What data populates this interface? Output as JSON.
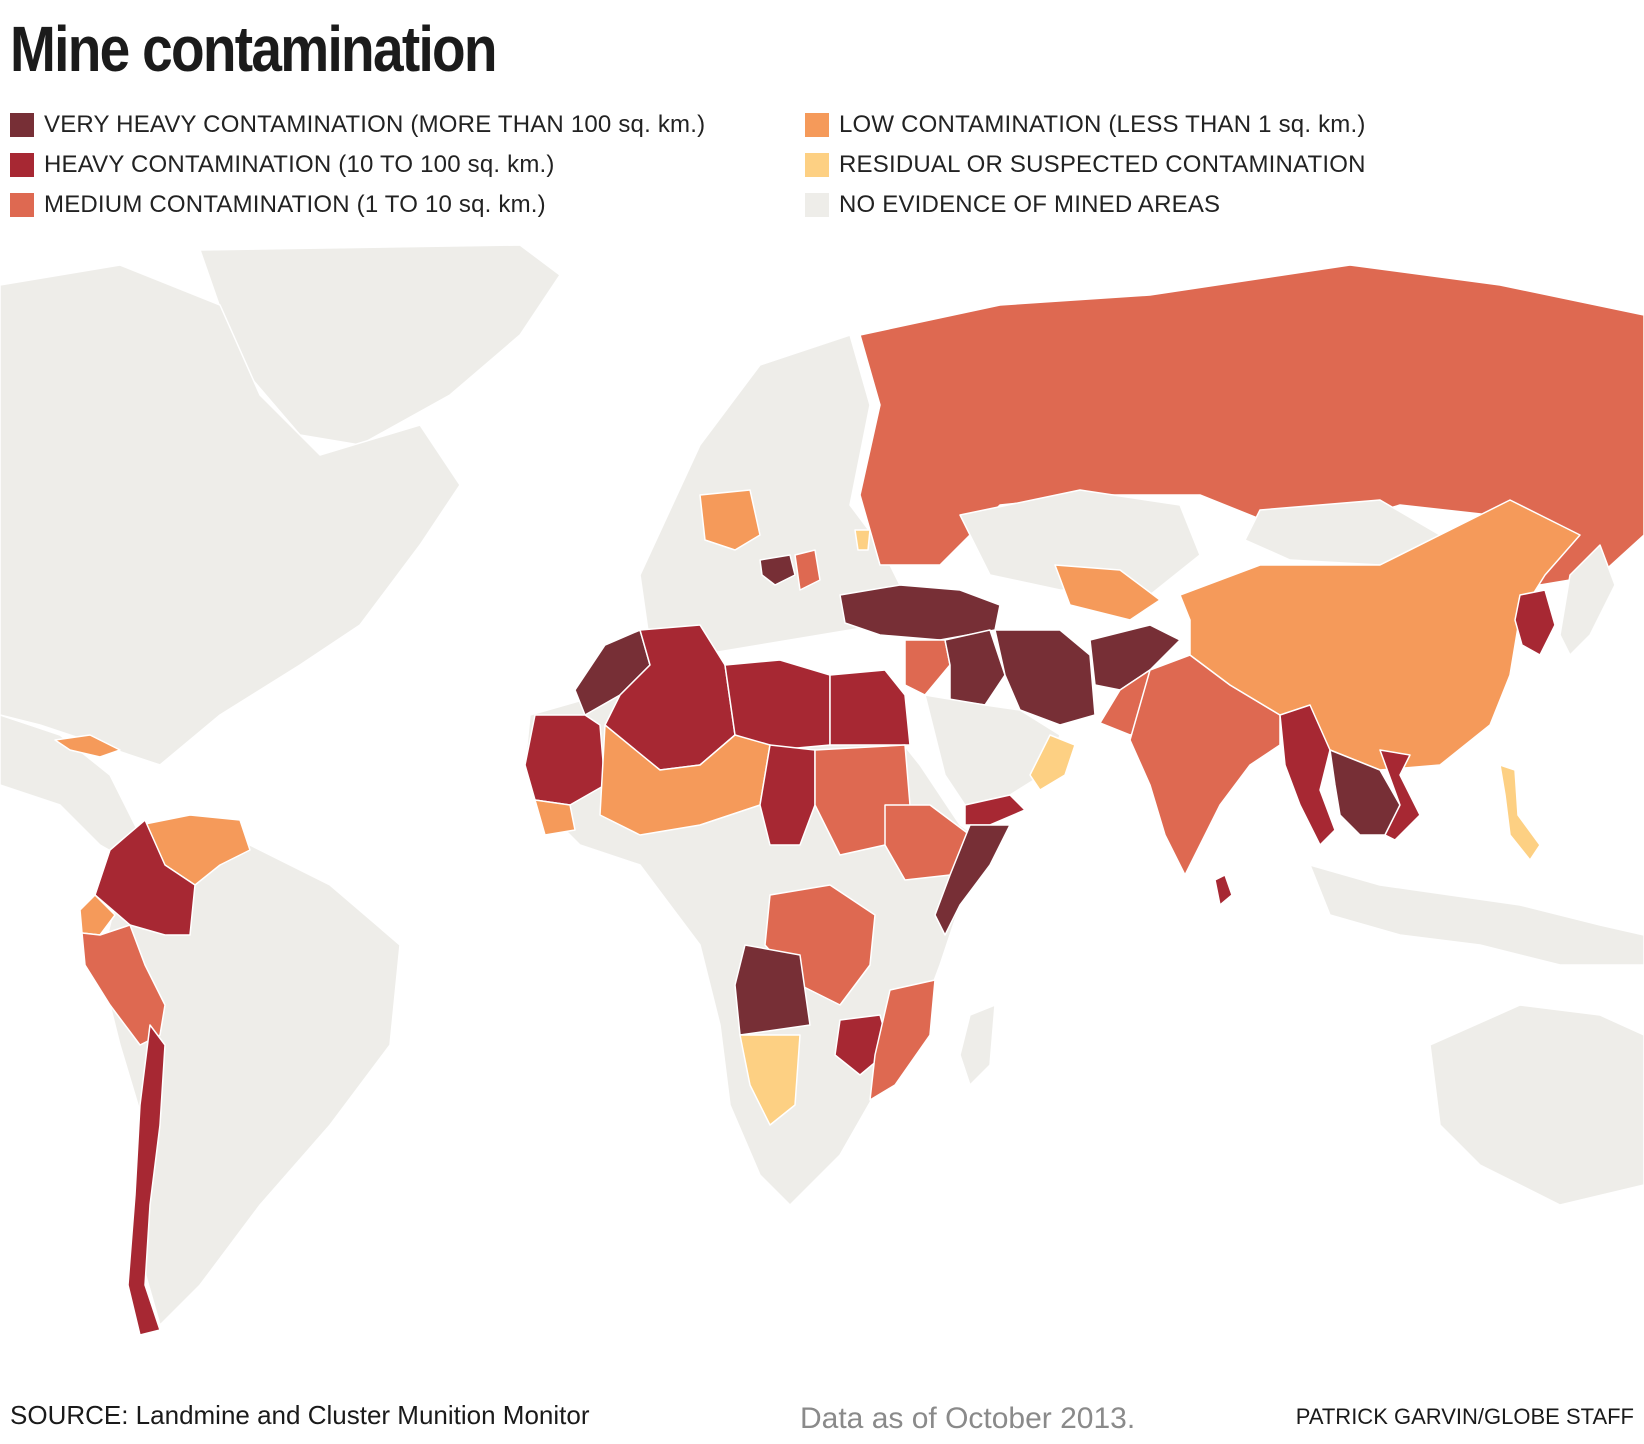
{
  "title": "Mine contamination",
  "legend": [
    {
      "label": "VERY HEAVY CONTAMINATION (MORE THAN 100 sq. km.)",
      "color": "#772f36"
    },
    {
      "label": "HEAVY CONTAMINATION (10 TO 100 sq. km.)",
      "color": "#a72833"
    },
    {
      "label": "MEDIUM CONTAMINATION (1 TO 10 sq. km.)",
      "color": "#de6951"
    },
    {
      "label": "LOW CONTAMINATION (LESS THAN 1 sq. km.)",
      "color": "#f59a5a"
    },
    {
      "label": "RESIDUAL OR SUSPECTED CONTAMINATION",
      "color": "#fdd083"
    },
    {
      "label": "NO EVIDENCE OF MINED AREAS",
      "color": "#eeede9"
    }
  ],
  "footer": {
    "source": "SOURCE: Landmine and Cluster Munition Monitor",
    "date_note": "Data as of October 2013.",
    "credit": "PATRICK GARVIN/GLOBE STAFF"
  }
}
